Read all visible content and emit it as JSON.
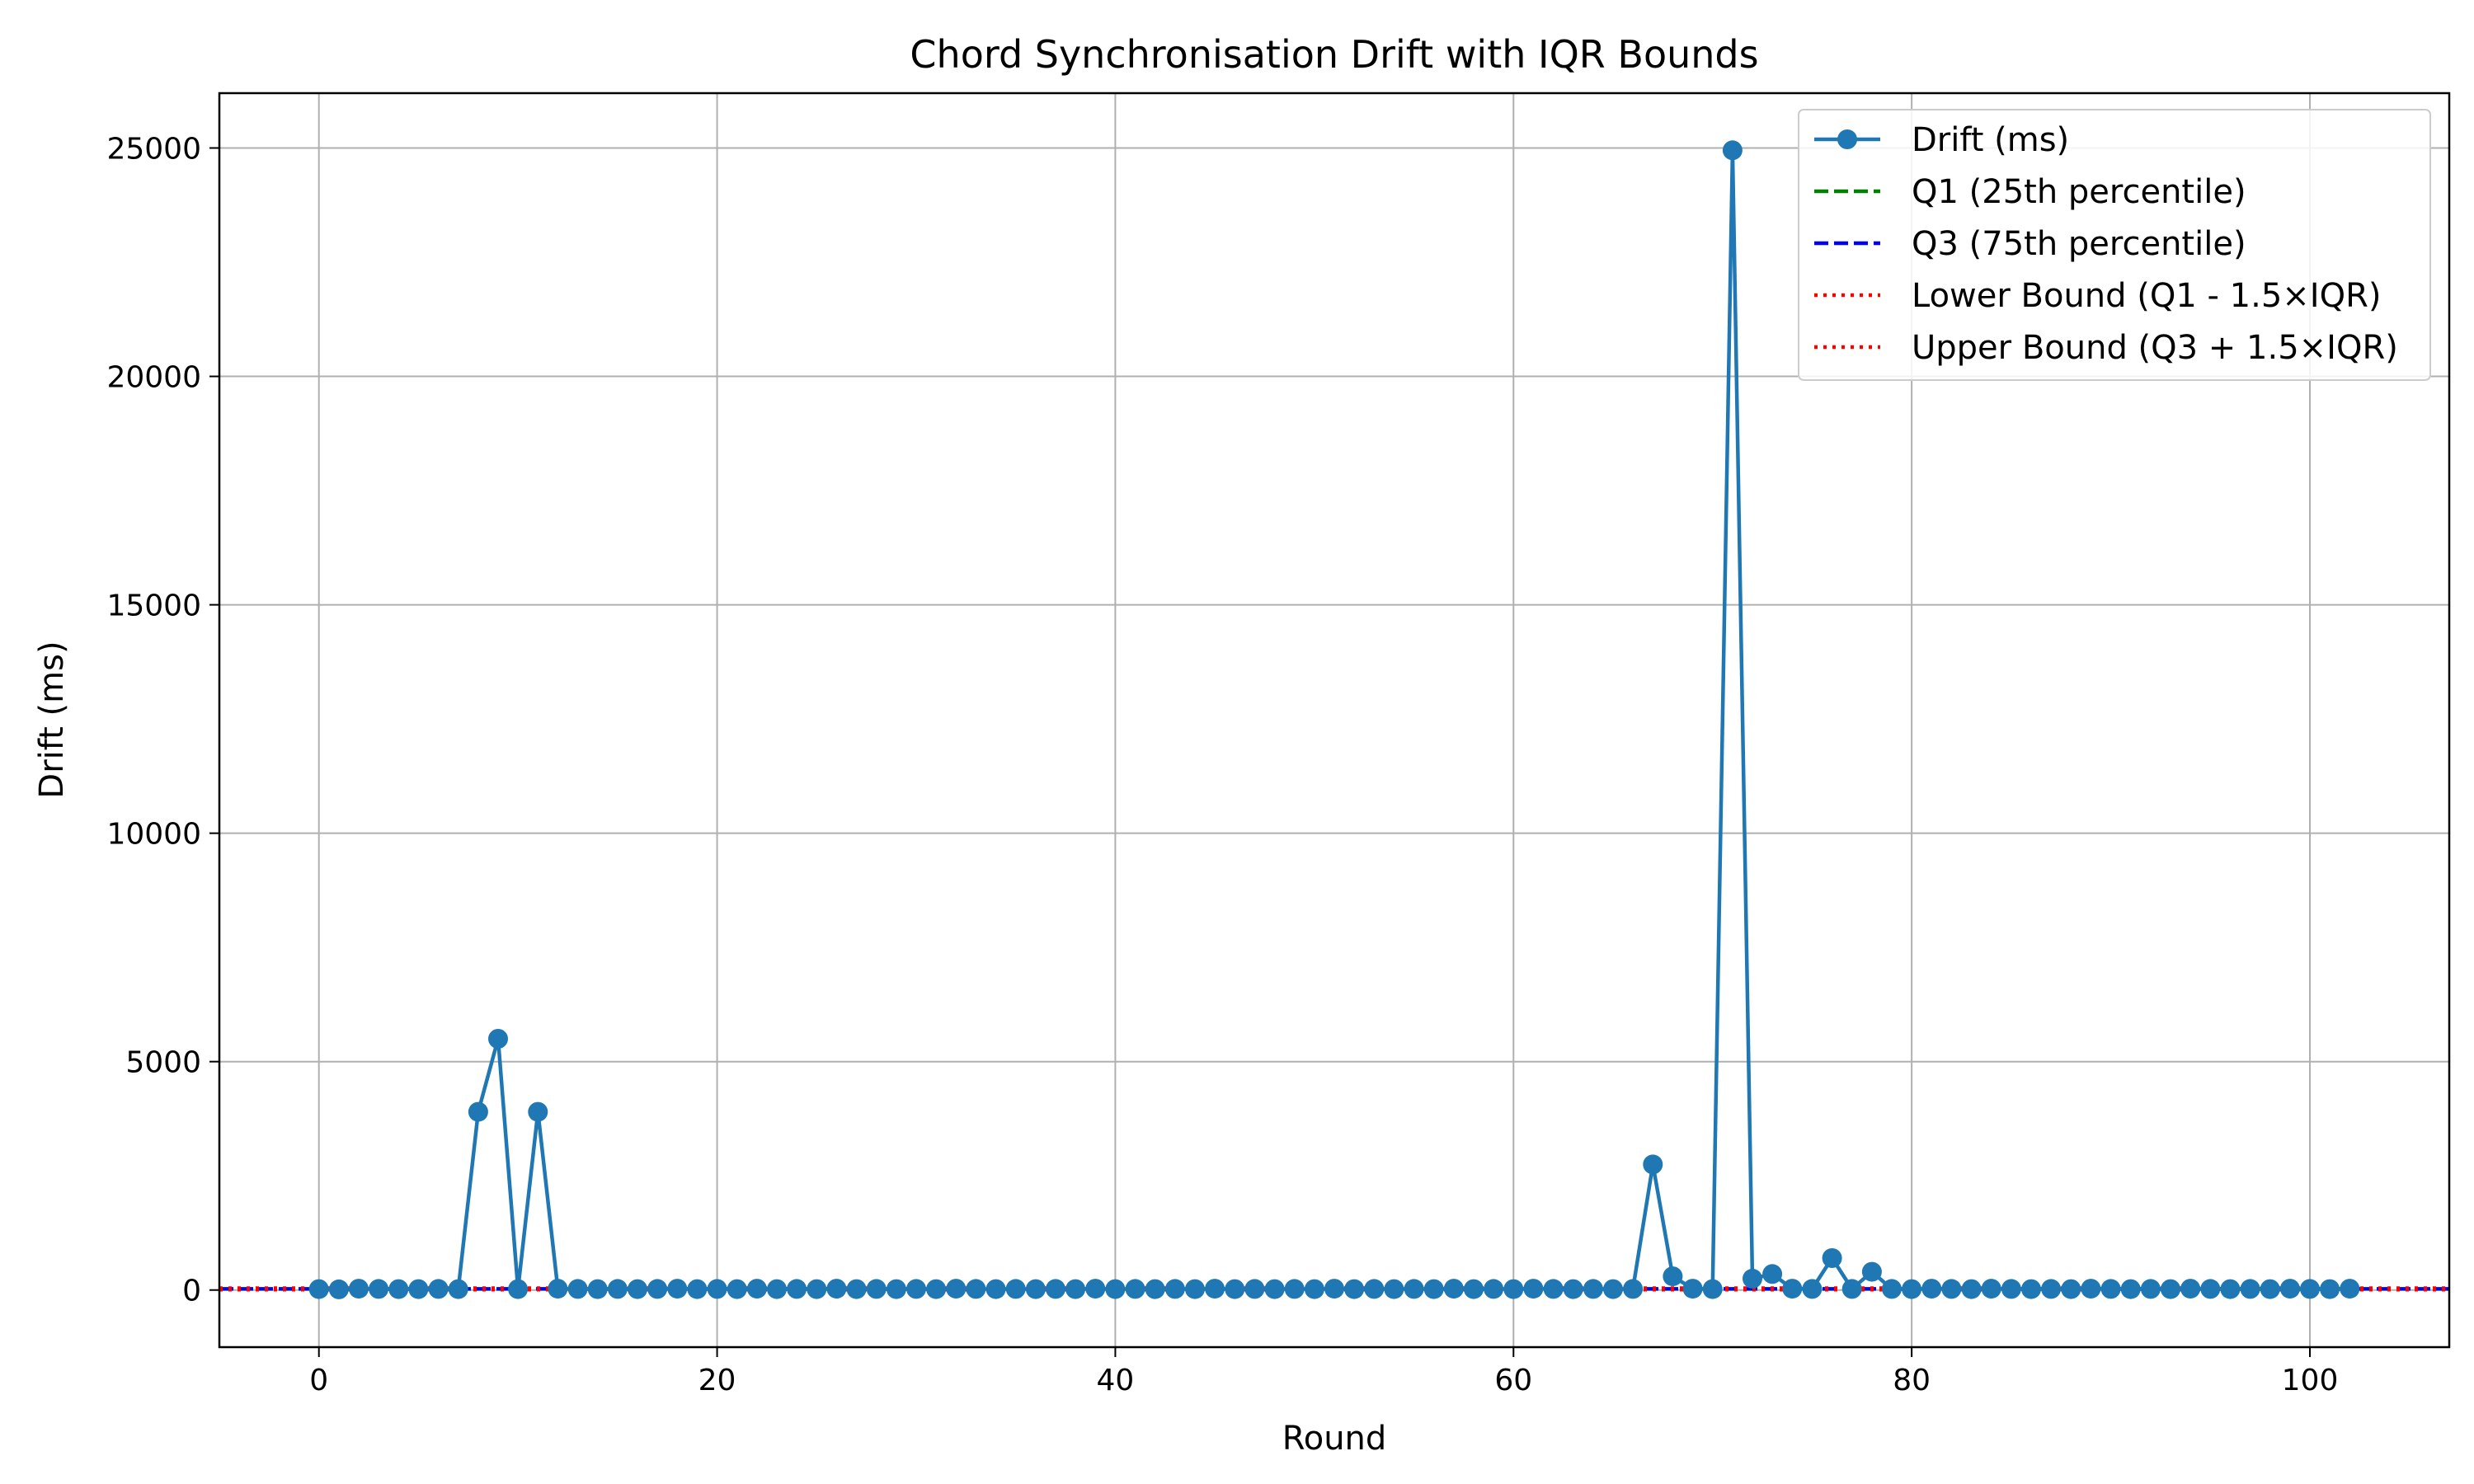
{
  "chart_data": {
    "type": "line",
    "title": "Chord Synchronisation Drift with IQR Bounds",
    "xlabel": "Round",
    "ylabel": "Drift (ms)",
    "xlim": [
      -5,
      107
    ],
    "ylim": [
      -1250,
      26200
    ],
    "x_ticks": [
      0,
      20,
      40,
      60,
      80,
      100
    ],
    "y_ticks": [
      0,
      5000,
      10000,
      15000,
      20000,
      25000
    ],
    "grid": true,
    "legend_position": "top-right",
    "series": [
      {
        "name": "Drift (ms)",
        "color": "#1f77b4",
        "marker": "circle",
        "x": [
          0,
          1,
          2,
          3,
          4,
          5,
          6,
          7,
          8,
          9,
          10,
          11,
          12,
          13,
          14,
          15,
          16,
          17,
          18,
          19,
          20,
          21,
          22,
          23,
          24,
          25,
          26,
          27,
          28,
          29,
          30,
          31,
          32,
          33,
          34,
          35,
          36,
          37,
          38,
          39,
          40,
          41,
          42,
          43,
          44,
          45,
          46,
          47,
          48,
          49,
          50,
          51,
          52,
          53,
          54,
          55,
          56,
          57,
          58,
          59,
          60,
          61,
          62,
          63,
          64,
          65,
          66,
          67,
          68,
          69,
          70,
          71,
          72,
          73,
          74,
          75,
          76,
          77,
          78,
          79,
          80,
          81,
          82,
          83,
          84,
          85,
          86,
          87,
          88,
          89,
          90,
          91,
          92,
          93,
          94,
          95,
          96,
          97,
          98,
          99,
          100,
          101,
          102
        ],
        "values": [
          20,
          15,
          30,
          25,
          20,
          20,
          25,
          20,
          3900,
          5500,
          20,
          3900,
          30,
          25,
          20,
          25,
          20,
          25,
          30,
          20,
          25,
          20,
          30,
          20,
          25,
          20,
          30,
          20,
          25,
          20,
          25,
          20,
          30,
          25,
          20,
          25,
          20,
          25,
          20,
          30,
          20,
          25,
          20,
          25,
          20,
          30,
          20,
          25,
          20,
          25,
          20,
          30,
          20,
          25,
          20,
          25,
          20,
          30,
          20,
          25,
          20,
          30,
          25,
          20,
          25,
          20,
          25,
          2750,
          300,
          30,
          20,
          24950,
          250,
          350,
          30,
          25,
          700,
          25,
          400,
          25,
          20,
          30,
          25,
          20,
          30,
          25,
          20,
          25,
          20,
          30,
          25,
          20,
          25,
          20,
          30,
          25,
          20,
          25,
          20,
          30,
          25,
          20,
          30
        ]
      }
    ],
    "reference_lines": [
      {
        "name": "Q1 (25th percentile)",
        "value": 20,
        "color": "#008000",
        "style": "dashed"
      },
      {
        "name": "Q3 (75th percentile)",
        "value": 30,
        "color": "#0000ff",
        "style": "dashed"
      },
      {
        "name": "Lower Bound (Q1 - 1.5×IQR)",
        "value": 5,
        "color": "#ff0000",
        "style": "dotted"
      },
      {
        "name": "Upper Bound (Q3 + 1.5×IQR)",
        "value": 45,
        "color": "#ff0000",
        "style": "dotted"
      }
    ]
  }
}
